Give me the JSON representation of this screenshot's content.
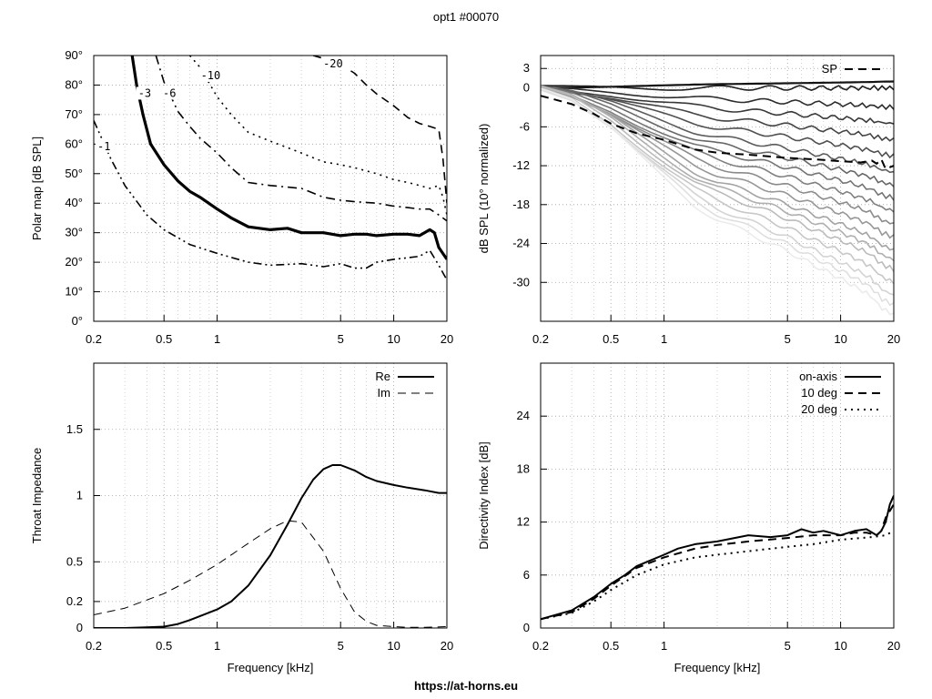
{
  "page": {
    "title": "opt1 #00070",
    "footer": "https://at-horns.eu"
  },
  "chart_data": [
    {
      "id": "polar",
      "type": "contour",
      "xlabel": "",
      "ylabel": "Polar map [dB SPL]",
      "xscale": "log",
      "xlim": [
        0.2,
        20
      ],
      "ylim": [
        0,
        90
      ],
      "xticks": [
        0.2,
        0.5,
        1,
        5,
        10,
        20
      ],
      "xticklabels": [
        "0.2",
        "0.5",
        "1",
        "5",
        "10",
        "20"
      ],
      "yticks": [
        0,
        10,
        20,
        30,
        40,
        50,
        60,
        70,
        80,
        90
      ],
      "yticklabels": [
        "0°",
        "10°",
        "20°",
        "30°",
        "40°",
        "50°",
        "60°",
        "70°",
        "80°",
        "90°"
      ],
      "grid": true,
      "series": [
        {
          "name": "-1",
          "style": "dashdotdot",
          "width": 1.6,
          "x": [
            0.2,
            0.25,
            0.3,
            0.4,
            0.5,
            0.7,
            1,
            1.5,
            2,
            3,
            4,
            5,
            6,
            7,
            8,
            10,
            12,
            14,
            16,
            18,
            20
          ],
          "y": [
            68,
            55,
            46,
            36,
            31,
            26,
            23,
            20,
            19,
            19.5,
            18.5,
            19.5,
            18,
            18,
            20,
            21,
            21.5,
            22,
            24,
            19,
            14
          ]
        },
        {
          "name": "-3",
          "style": "solid",
          "width": 3.2,
          "x": [
            0.33,
            0.35,
            0.38,
            0.42,
            0.5,
            0.6,
            0.7,
            0.8,
            1,
            1.2,
            1.5,
            2,
            2.5,
            3,
            4,
            5,
            6,
            7,
            8,
            10,
            12,
            14,
            16,
            17,
            18,
            20
          ],
          "y": [
            90,
            80,
            70,
            60,
            53,
            47.5,
            44,
            42,
            38,
            35,
            32,
            31,
            31.5,
            30,
            30,
            29,
            29.5,
            29.5,
            29,
            29.5,
            29.5,
            29,
            31,
            30,
            25,
            21
          ]
        },
        {
          "name": "-6",
          "style": "dashdot",
          "width": 1.6,
          "x": [
            0.45,
            0.5,
            0.6,
            0.7,
            0.8,
            1,
            1.2,
            1.5,
            2,
            3,
            4,
            5,
            6,
            8,
            10,
            12,
            14,
            16,
            18,
            20
          ],
          "y": [
            90,
            81,
            71,
            66,
            62,
            57,
            52,
            47,
            46,
            45,
            42,
            41,
            40.5,
            40,
            39,
            38.5,
            38,
            38,
            36,
            34
          ]
        },
        {
          "name": "-10",
          "style": "dotted",
          "width": 1.6,
          "x": [
            0.7,
            0.8,
            1,
            1.2,
            1.5,
            2,
            3,
            4,
            5,
            6,
            8,
            10,
            12,
            14,
            16,
            18,
            19,
            20
          ],
          "y": [
            90,
            86,
            76,
            70,
            64,
            61,
            57,
            54,
            53,
            52,
            50,
            48,
            47,
            46,
            45,
            46,
            42,
            36
          ]
        },
        {
          "name": "-20",
          "style": "dashed",
          "width": 1.6,
          "x": [
            3.5,
            4,
            5,
            6,
            7,
            8,
            10,
            12,
            14,
            16,
            18,
            19,
            20
          ],
          "y": [
            90,
            89,
            87,
            84,
            80,
            77,
            73,
            69,
            67,
            66,
            65,
            55,
            40
          ]
        }
      ],
      "contour_labels": [
        {
          "text": "-1",
          "x": 0.2,
          "y": 58
        },
        {
          "text": "-3",
          "x": 0.34,
          "y": 76
        },
        {
          "text": "-6",
          "x": 0.47,
          "y": 76
        },
        {
          "text": "-10",
          "x": 0.77,
          "y": 82
        },
        {
          "text": "-20",
          "x": 3.8,
          "y": 86
        }
      ]
    },
    {
      "id": "spl",
      "type": "line",
      "xlabel": "",
      "ylabel": "dB SPL (10° normalized)",
      "xscale": "log",
      "xlim": [
        0.2,
        20
      ],
      "ylim": [
        -36,
        5
      ],
      "xticks": [
        0.2,
        0.5,
        1,
        5,
        10,
        20
      ],
      "xticklabels": [
        "0.2",
        "0.5",
        "1",
        "5",
        "10",
        "20"
      ],
      "yticks": [
        3,
        0,
        -6,
        -12,
        -18,
        -24,
        -30
      ],
      "yticklabels": [
        "3",
        "0",
        "-6",
        "-12",
        "-18",
        "-24",
        "-30"
      ],
      "grid": true,
      "legend": {
        "position": "top-right",
        "entries": [
          "SP"
        ]
      },
      "x": [
        0.2,
        0.3,
        0.5,
        0.7,
        1,
        1.5,
        2,
        3,
        5,
        7,
        10,
        13,
        15,
        17,
        20
      ],
      "fan": {
        "angles": [
          0,
          10,
          20,
          30,
          40,
          50,
          60,
          70,
          80,
          90,
          100,
          110,
          120,
          130,
          140,
          150,
          160,
          170,
          180
        ],
        "shape_x": [
          0.2,
          0.3,
          0.5,
          0.7,
          1,
          1.5,
          2,
          3,
          5,
          7,
          10,
          13,
          15,
          17,
          20
        ],
        "shape": [
          0,
          0.05,
          0.18,
          0.29,
          0.4,
          0.52,
          0.58,
          0.64,
          0.72,
          0.78,
          0.84,
          0.89,
          0.92,
          0.97,
          1.0
        ],
        "end_values": [
          1,
          0,
          -3,
          -5.5,
          -8,
          -10.5,
          -13,
          -15,
          -17,
          -19,
          -21,
          -23,
          -25,
          -26.5,
          -28,
          -30,
          -32,
          -33.5,
          -35
        ]
      },
      "series": [
        {
          "name": "SP",
          "style": "dashed",
          "width": 2,
          "x": [
            0.2,
            0.3,
            0.4,
            0.5,
            0.7,
            1,
            1.5,
            2,
            3,
            5,
            7,
            10,
            13,
            15,
            16,
            17,
            18,
            20
          ],
          "y": [
            -1.2,
            -2.5,
            -4,
            -5.5,
            -7,
            -8,
            -9.5,
            -10,
            -10.3,
            -10.8,
            -11,
            -11.3,
            -11.5,
            -11.2,
            -11.7,
            -11,
            -12.5,
            -12
          ]
        }
      ]
    },
    {
      "id": "impedance",
      "type": "line",
      "xlabel": "Frequency [kHz]",
      "ylabel": "Throat Impedance",
      "xscale": "log",
      "xlim": [
        0.2,
        20
      ],
      "ylim": [
        0,
        2
      ],
      "xticks": [
        0.2,
        0.5,
        1,
        5,
        10,
        20
      ],
      "xticklabels": [
        "0.2",
        "0.5",
        "1",
        "5",
        "10",
        "20"
      ],
      "yticks": [
        0,
        0.2,
        0.5,
        1,
        1.5
      ],
      "yticklabels": [
        "0",
        "0.2",
        "0.5",
        "1",
        "1.5"
      ],
      "grid": true,
      "legend": {
        "position": "top-right",
        "entries": [
          "Re",
          "Im"
        ]
      },
      "series": [
        {
          "name": "Re",
          "style": "solid",
          "width": 2,
          "x": [
            0.2,
            0.3,
            0.4,
            0.5,
            0.6,
            0.7,
            0.8,
            1,
            1.2,
            1.5,
            2,
            2.5,
            3,
            3.5,
            4,
            4.5,
            5,
            6,
            7,
            8,
            10,
            12,
            15,
            18,
            20
          ],
          "y": [
            0,
            0,
            0.005,
            0.01,
            0.03,
            0.06,
            0.09,
            0.14,
            0.2,
            0.32,
            0.55,
            0.78,
            0.98,
            1.12,
            1.2,
            1.23,
            1.23,
            1.19,
            1.14,
            1.11,
            1.08,
            1.06,
            1.04,
            1.02,
            1.02
          ]
        },
        {
          "name": "Im",
          "style": "dashed",
          "width": 1,
          "x": [
            0.2,
            0.3,
            0.5,
            0.7,
            1,
            1.5,
            2,
            2.5,
            3,
            4,
            5,
            6,
            7,
            8,
            10,
            12,
            15,
            20
          ],
          "y": [
            0.1,
            0.15,
            0.26,
            0.36,
            0.48,
            0.64,
            0.75,
            0.81,
            0.8,
            0.58,
            0.3,
            0.12,
            0.05,
            0.02,
            0.01,
            0.005,
            0.005,
            0.01
          ]
        }
      ]
    },
    {
      "id": "di",
      "type": "line",
      "xlabel": "Frequency [kHz]",
      "ylabel": "Directivity Index [dB]",
      "xscale": "log",
      "xlim": [
        0.2,
        20
      ],
      "ylim": [
        0,
        30
      ],
      "xticks": [
        0.2,
        0.5,
        1,
        5,
        10,
        20
      ],
      "xticklabels": [
        "0.2",
        "0.5",
        "1",
        "5",
        "10",
        "20"
      ],
      "yticks": [
        0,
        6,
        12,
        18,
        24
      ],
      "yticklabels": [
        "0",
        "6",
        "12",
        "18",
        "24"
      ],
      "grid": true,
      "legend": {
        "position": "top-right",
        "entries": [
          "on-axis",
          "10 deg",
          "20 deg"
        ]
      },
      "series": [
        {
          "name": "on-axis",
          "style": "solid",
          "width": 2,
          "x": [
            0.2,
            0.3,
            0.4,
            0.5,
            0.6,
            0.7,
            0.8,
            1,
            1.2,
            1.5,
            2,
            3,
            4,
            5,
            6,
            7,
            8,
            10,
            12,
            14,
            16,
            17,
            18,
            19,
            20
          ],
          "y": [
            1,
            2,
            3.5,
            5,
            6,
            7,
            7.5,
            8.3,
            9,
            9.5,
            9.8,
            10.5,
            10.3,
            10.5,
            11.2,
            10.8,
            11,
            10.5,
            11,
            11.2,
            10.5,
            11,
            12,
            14,
            15
          ]
        },
        {
          "name": "10 deg",
          "style": "dashed",
          "width": 2,
          "x": [
            0.2,
            0.3,
            0.4,
            0.5,
            0.7,
            1,
            1.5,
            2,
            3,
            5,
            7,
            10,
            12,
            14,
            16,
            17,
            18,
            20
          ],
          "y": [
            1,
            1.8,
            3.3,
            4.8,
            6.8,
            8,
            9,
            9.4,
            9.8,
            10.2,
            10.5,
            10.5,
            10.8,
            10.8,
            10.5,
            11,
            12.5,
            14
          ]
        },
        {
          "name": "20 deg",
          "style": "dotted",
          "width": 2,
          "x": [
            0.2,
            0.3,
            0.4,
            0.5,
            0.7,
            1,
            1.5,
            2,
            3,
            5,
            7,
            10,
            15,
            18,
            20
          ],
          "y": [
            1,
            1.7,
            3,
            4.3,
            6,
            7.2,
            8,
            8.3,
            8.7,
            9.2,
            9.5,
            10,
            10.3,
            10.5,
            11
          ]
        }
      ]
    }
  ]
}
